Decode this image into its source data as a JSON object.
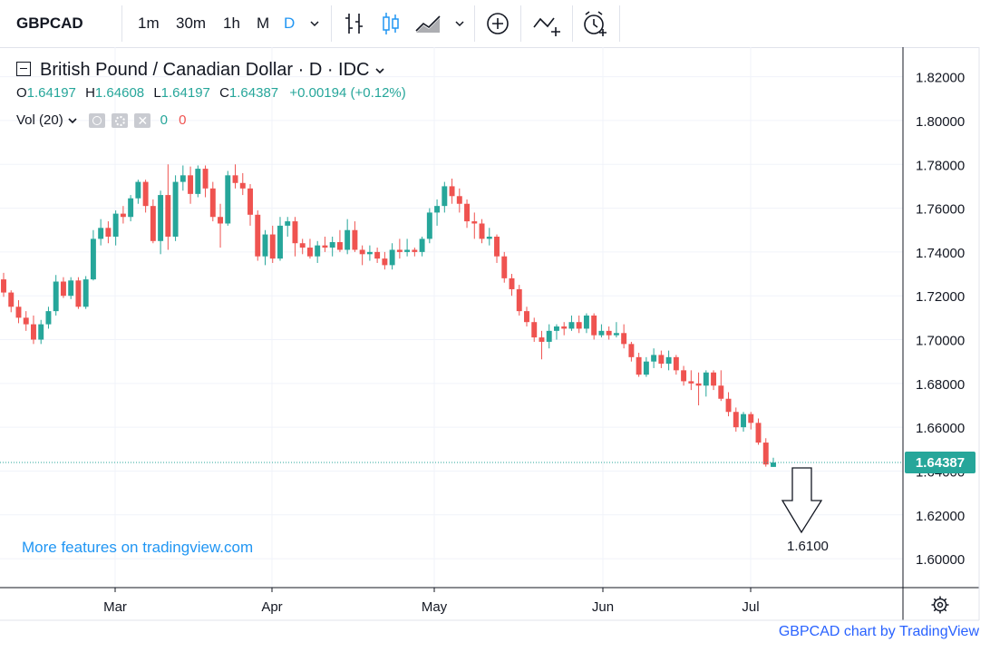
{
  "toolbar": {
    "symbol": "GBPCAD",
    "intervals": [
      "1m",
      "30m",
      "1h",
      "M",
      "D"
    ],
    "active_interval": "D",
    "icons": [
      "chevron-down-icon",
      "bar-style-icon",
      "candles-icon",
      "area-icon",
      "chevron-down-icon",
      "add-indicator-icon",
      "compare-icon",
      "alert-icon"
    ]
  },
  "legend": {
    "title": "British Pound / Canadian Dollar · D · IDC",
    "o_label": "O",
    "o_value": "1.64197",
    "h_label": "H",
    "h_value": "1.64608",
    "l_label": "L",
    "l_value": "1.64197",
    "c_label": "C",
    "c_value": "1.64387",
    "change": "+0.00194 (+0.12%)",
    "vol_label": "Vol (20)",
    "vol_up": "0",
    "vol_down": "0"
  },
  "promo": "More features on tradingview.com",
  "attribution": "GBPCAD chart by TradingView",
  "annotation": {
    "label": "1.6100"
  },
  "colors": {
    "up": "#26a69a",
    "down": "#ef5350",
    "accent": "#2196f3",
    "price_tag": "#26a69a"
  },
  "chart_data": {
    "type": "candlestick",
    "y_ticks": [
      "1.82000",
      "1.80000",
      "1.78000",
      "1.76000",
      "1.74000",
      "1.72000",
      "1.70000",
      "1.68000",
      "1.66000",
      "1.64000",
      "1.62000",
      "1.60000"
    ],
    "x_ticks": [
      "Mar",
      "Apr",
      "May",
      "Jun",
      "Jul"
    ],
    "last_price": "1.64387",
    "ylim": [
      1.5868,
      1.8335
    ],
    "grid": true,
    "candles": [
      [
        1.7275,
        1.7305,
        1.7195,
        1.7215
      ],
      [
        1.7215,
        1.7225,
        1.7125,
        1.715
      ],
      [
        1.715,
        1.718,
        1.7075,
        1.71
      ],
      [
        1.71,
        1.713,
        1.704,
        1.707
      ],
      [
        1.707,
        1.711,
        1.698,
        1.7
      ],
      [
        1.7,
        1.709,
        1.698,
        1.707
      ],
      [
        1.707,
        1.715,
        1.705,
        1.713
      ],
      [
        1.713,
        1.7295,
        1.711,
        1.7265
      ],
      [
        1.7265,
        1.7285,
        1.719,
        1.72
      ],
      [
        1.72,
        1.7285,
        1.7185,
        1.727
      ],
      [
        1.727,
        1.7285,
        1.714,
        1.715
      ],
      [
        1.715,
        1.729,
        1.714,
        1.7275
      ],
      [
        1.7275,
        1.75,
        1.727,
        1.746
      ],
      [
        1.746,
        1.755,
        1.743,
        1.751
      ],
      [
        1.751,
        1.754,
        1.744,
        1.747
      ],
      [
        1.747,
        1.759,
        1.743,
        1.7575
      ],
      [
        1.7575,
        1.761,
        1.753,
        1.756
      ],
      [
        1.756,
        1.766,
        1.754,
        1.7645
      ],
      [
        1.7645,
        1.773,
        1.762,
        1.772
      ],
      [
        1.772,
        1.773,
        1.758,
        1.761
      ],
      [
        1.761,
        1.764,
        1.744,
        1.745
      ],
      [
        1.745,
        1.768,
        1.739,
        1.766
      ],
      [
        1.766,
        1.78,
        1.741,
        1.747
      ],
      [
        1.747,
        1.775,
        1.745,
        1.772
      ],
      [
        1.772,
        1.7795,
        1.768,
        1.775
      ],
      [
        1.775,
        1.779,
        1.762,
        1.7665
      ],
      [
        1.7665,
        1.7795,
        1.765,
        1.778
      ],
      [
        1.778,
        1.7795,
        1.765,
        1.769
      ],
      [
        1.769,
        1.772,
        1.754,
        1.756
      ],
      [
        1.756,
        1.762,
        1.742,
        1.753
      ],
      [
        1.753,
        1.777,
        1.752,
        1.775
      ],
      [
        1.775,
        1.78,
        1.769,
        1.7715
      ],
      [
        1.7715,
        1.776,
        1.766,
        1.769
      ],
      [
        1.769,
        1.771,
        1.752,
        1.757
      ],
      [
        1.757,
        1.759,
        1.736,
        1.738
      ],
      [
        1.738,
        1.75,
        1.734,
        1.748
      ],
      [
        1.748,
        1.752,
        1.735,
        1.737
      ],
      [
        1.737,
        1.756,
        1.736,
        1.752
      ],
      [
        1.752,
        1.756,
        1.747,
        1.754
      ],
      [
        1.754,
        1.756,
        1.738,
        1.744
      ],
      [
        1.744,
        1.746,
        1.739,
        1.742
      ],
      [
        1.742,
        1.746,
        1.737,
        1.738
      ],
      [
        1.738,
        1.745,
        1.735,
        1.743
      ],
      [
        1.743,
        1.747,
        1.74,
        1.742
      ],
      [
        1.742,
        1.747,
        1.738,
        1.7445
      ],
      [
        1.7445,
        1.75,
        1.74,
        1.741
      ],
      [
        1.741,
        1.755,
        1.739,
        1.75
      ],
      [
        1.75,
        1.754,
        1.74,
        1.741
      ],
      [
        1.741,
        1.743,
        1.734,
        1.739
      ],
      [
        1.739,
        1.743,
        1.736,
        1.74
      ],
      [
        1.74,
        1.742,
        1.735,
        1.737
      ],
      [
        1.737,
        1.74,
        1.732,
        1.734
      ],
      [
        1.734,
        1.744,
        1.732,
        1.741
      ],
      [
        1.741,
        1.746,
        1.737,
        1.74
      ],
      [
        1.74,
        1.746,
        1.738,
        1.741
      ],
      [
        1.741,
        1.742,
        1.738,
        1.74
      ],
      [
        1.74,
        1.747,
        1.738,
        1.746
      ],
      [
        1.746,
        1.76,
        1.744,
        1.758
      ],
      [
        1.758,
        1.764,
        1.752,
        1.761
      ],
      [
        1.761,
        1.772,
        1.758,
        1.77
      ],
      [
        1.77,
        1.7735,
        1.762,
        1.7655
      ],
      [
        1.7655,
        1.769,
        1.758,
        1.762
      ],
      [
        1.762,
        1.764,
        1.751,
        1.754
      ],
      [
        1.754,
        1.758,
        1.746,
        1.753
      ],
      [
        1.753,
        1.755,
        1.744,
        1.746
      ],
      [
        1.746,
        1.751,
        1.743,
        1.747
      ],
      [
        1.747,
        1.748,
        1.735,
        1.738
      ],
      [
        1.738,
        1.74,
        1.726,
        1.728
      ],
      [
        1.728,
        1.73,
        1.72,
        1.723
      ],
      [
        1.723,
        1.725,
        1.711,
        1.713
      ],
      [
        1.713,
        1.715,
        1.706,
        1.708
      ],
      [
        1.708,
        1.71,
        1.699,
        1.701
      ],
      [
        1.701,
        1.704,
        1.691,
        1.699
      ],
      [
        1.699,
        1.707,
        1.696,
        1.704
      ],
      [
        1.704,
        1.707,
        1.7,
        1.706
      ],
      [
        1.706,
        1.708,
        1.702,
        1.705
      ],
      [
        1.705,
        1.711,
        1.704,
        1.708
      ],
      [
        1.708,
        1.711,
        1.703,
        1.705
      ],
      [
        1.705,
        1.712,
        1.703,
        1.711
      ],
      [
        1.711,
        1.712,
        1.7,
        1.702
      ],
      [
        1.702,
        1.707,
        1.701,
        1.704
      ],
      [
        1.704,
        1.706,
        1.7,
        1.702
      ],
      [
        1.702,
        1.708,
        1.701,
        1.703
      ],
      [
        1.703,
        1.707,
        1.696,
        1.698
      ],
      [
        1.698,
        1.699,
        1.69,
        1.692
      ],
      [
        1.692,
        1.694,
        1.683,
        1.684
      ],
      [
        1.684,
        1.692,
        1.683,
        1.69
      ],
      [
        1.69,
        1.696,
        1.687,
        1.693
      ],
      [
        1.693,
        1.695,
        1.687,
        1.689
      ],
      [
        1.689,
        1.695,
        1.686,
        1.692
      ],
      [
        1.692,
        1.693,
        1.684,
        1.686
      ],
      [
        1.686,
        1.688,
        1.679,
        1.681
      ],
      [
        1.681,
        1.686,
        1.677,
        1.68
      ],
      [
        1.68,
        1.685,
        1.67,
        1.679
      ],
      [
        1.679,
        1.686,
        1.674,
        1.685
      ],
      [
        1.685,
        1.686,
        1.677,
        1.679
      ],
      [
        1.679,
        1.686,
        1.672,
        1.673
      ],
      [
        1.673,
        1.676,
        1.665,
        1.667
      ],
      [
        1.667,
        1.669,
        1.658,
        1.66
      ],
      [
        1.66,
        1.667,
        1.658,
        1.666
      ],
      [
        1.666,
        1.667,
        1.659,
        1.662
      ],
      [
        1.662,
        1.664,
        1.652,
        1.653
      ],
      [
        1.653,
        1.655,
        1.642,
        1.643
      ],
      [
        1.6419,
        1.6461,
        1.6419,
        1.6439
      ]
    ]
  }
}
